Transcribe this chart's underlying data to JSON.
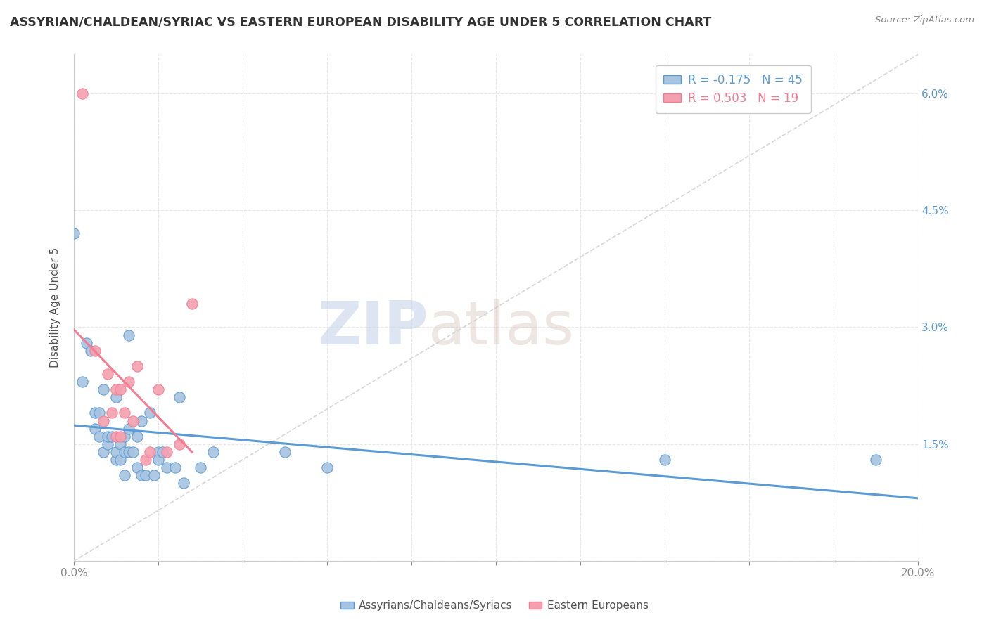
{
  "title": "ASSYRIAN/CHALDEAN/SYRIAC VS EASTERN EUROPEAN DISABILITY AGE UNDER 5 CORRELATION CHART",
  "source": "Source: ZipAtlas.com",
  "ylabel": "Disability Age Under 5",
  "xlim": [
    0.0,
    0.2
  ],
  "ylim": [
    0.0,
    0.065
  ],
  "xticks": [
    0.0,
    0.02,
    0.04,
    0.06,
    0.08,
    0.1,
    0.12,
    0.14,
    0.16,
    0.18,
    0.2
  ],
  "yticks": [
    0.0,
    0.015,
    0.03,
    0.045,
    0.06
  ],
  "right_ytick_labels": [
    "",
    "1.5%",
    "3.0%",
    "4.5%",
    "6.0%"
  ],
  "legend_blue_label": "Assyrians/Chaldeans/Syriacs",
  "legend_pink_label": "Eastern Europeans",
  "blue_R": -0.175,
  "blue_N": 45,
  "pink_R": 0.503,
  "pink_N": 19,
  "blue_color": "#a8c4e0",
  "pink_color": "#f4a0b0",
  "blue_line_color": "#5b9bd5",
  "pink_line_color": "#f47c90",
  "blue_scatter": [
    [
      0.0,
      0.042
    ],
    [
      0.002,
      0.023
    ],
    [
      0.003,
      0.028
    ],
    [
      0.004,
      0.027
    ],
    [
      0.005,
      0.019
    ],
    [
      0.005,
      0.017
    ],
    [
      0.006,
      0.016
    ],
    [
      0.006,
      0.019
    ],
    [
      0.007,
      0.022
    ],
    [
      0.007,
      0.014
    ],
    [
      0.008,
      0.015
    ],
    [
      0.008,
      0.016
    ],
    [
      0.009,
      0.016
    ],
    [
      0.01,
      0.021
    ],
    [
      0.01,
      0.013
    ],
    [
      0.01,
      0.014
    ],
    [
      0.011,
      0.013
    ],
    [
      0.011,
      0.015
    ],
    [
      0.012,
      0.016
    ],
    [
      0.012,
      0.014
    ],
    [
      0.013,
      0.014
    ],
    [
      0.013,
      0.017
    ],
    [
      0.013,
      0.029
    ],
    [
      0.014,
      0.014
    ],
    [
      0.015,
      0.012
    ],
    [
      0.015,
      0.016
    ],
    [
      0.016,
      0.011
    ],
    [
      0.016,
      0.018
    ],
    [
      0.017,
      0.011
    ],
    [
      0.018,
      0.019
    ],
    [
      0.019,
      0.011
    ],
    [
      0.02,
      0.014
    ],
    [
      0.02,
      0.013
    ],
    [
      0.021,
      0.014
    ],
    [
      0.022,
      0.012
    ],
    [
      0.024,
      0.012
    ],
    [
      0.025,
      0.021
    ],
    [
      0.026,
      0.01
    ],
    [
      0.03,
      0.012
    ],
    [
      0.033,
      0.014
    ],
    [
      0.05,
      0.014
    ],
    [
      0.06,
      0.012
    ],
    [
      0.14,
      0.013
    ],
    [
      0.19,
      0.013
    ],
    [
      0.012,
      0.011
    ]
  ],
  "pink_scatter": [
    [
      0.002,
      0.06
    ],
    [
      0.005,
      0.027
    ],
    [
      0.007,
      0.018
    ],
    [
      0.008,
      0.024
    ],
    [
      0.009,
      0.019
    ],
    [
      0.01,
      0.016
    ],
    [
      0.01,
      0.022
    ],
    [
      0.011,
      0.016
    ],
    [
      0.011,
      0.022
    ],
    [
      0.012,
      0.019
    ],
    [
      0.013,
      0.023
    ],
    [
      0.014,
      0.018
    ],
    [
      0.015,
      0.025
    ],
    [
      0.017,
      0.013
    ],
    [
      0.018,
      0.014
    ],
    [
      0.02,
      0.022
    ],
    [
      0.022,
      0.014
    ],
    [
      0.025,
      0.015
    ],
    [
      0.028,
      0.033
    ]
  ],
  "ref_line": [
    [
      0.0,
      0.0
    ],
    [
      0.2,
      0.065
    ]
  ],
  "watermark_zip": "ZIP",
  "watermark_atlas": "atlas",
  "background_color": "#ffffff",
  "grid_color": "#e8e8e8"
}
